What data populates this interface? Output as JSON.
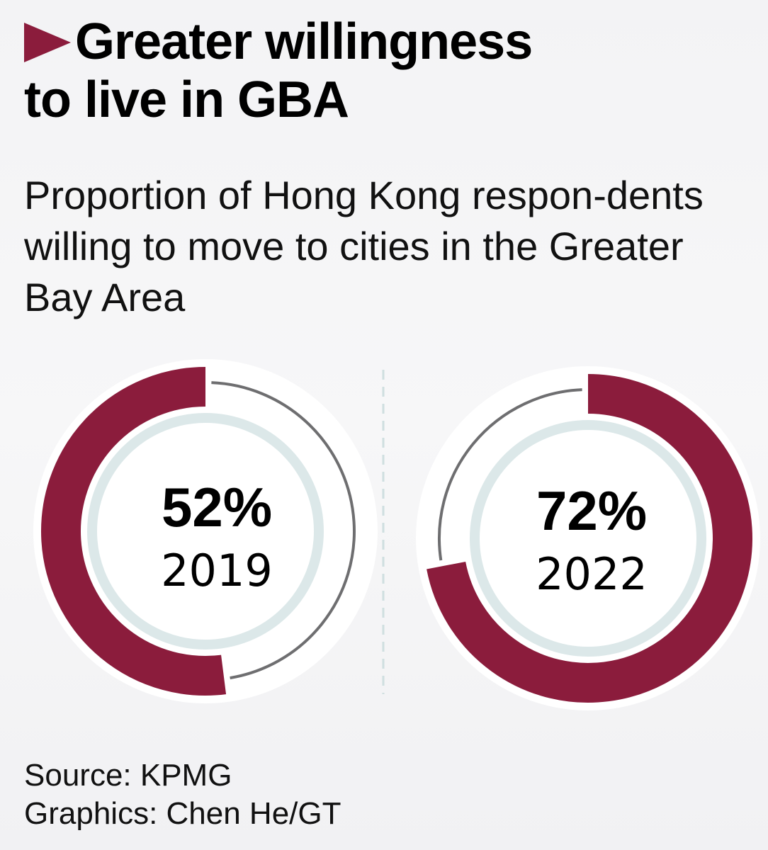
{
  "title_line1": "Greater willingness",
  "title_line2": "to live in GBA",
  "subtitle": "Proportion of Hong Kong respon-dents willing to move to cities in the Greater Bay Area",
  "source": "Source: KPMG",
  "graphics": "Graphics: Chen He/GT",
  "colors": {
    "accent": "#8b1c3c",
    "remainder": "#6e6e70",
    "inner_ring": "#dce8e9"
  },
  "chart_data": {
    "type": "donut",
    "items": [
      {
        "year": "2019",
        "value": 52,
        "label": "52%",
        "direction": "counterclockwise"
      },
      {
        "year": "2022",
        "value": 72,
        "label": "72%",
        "direction": "clockwise"
      }
    ]
  }
}
